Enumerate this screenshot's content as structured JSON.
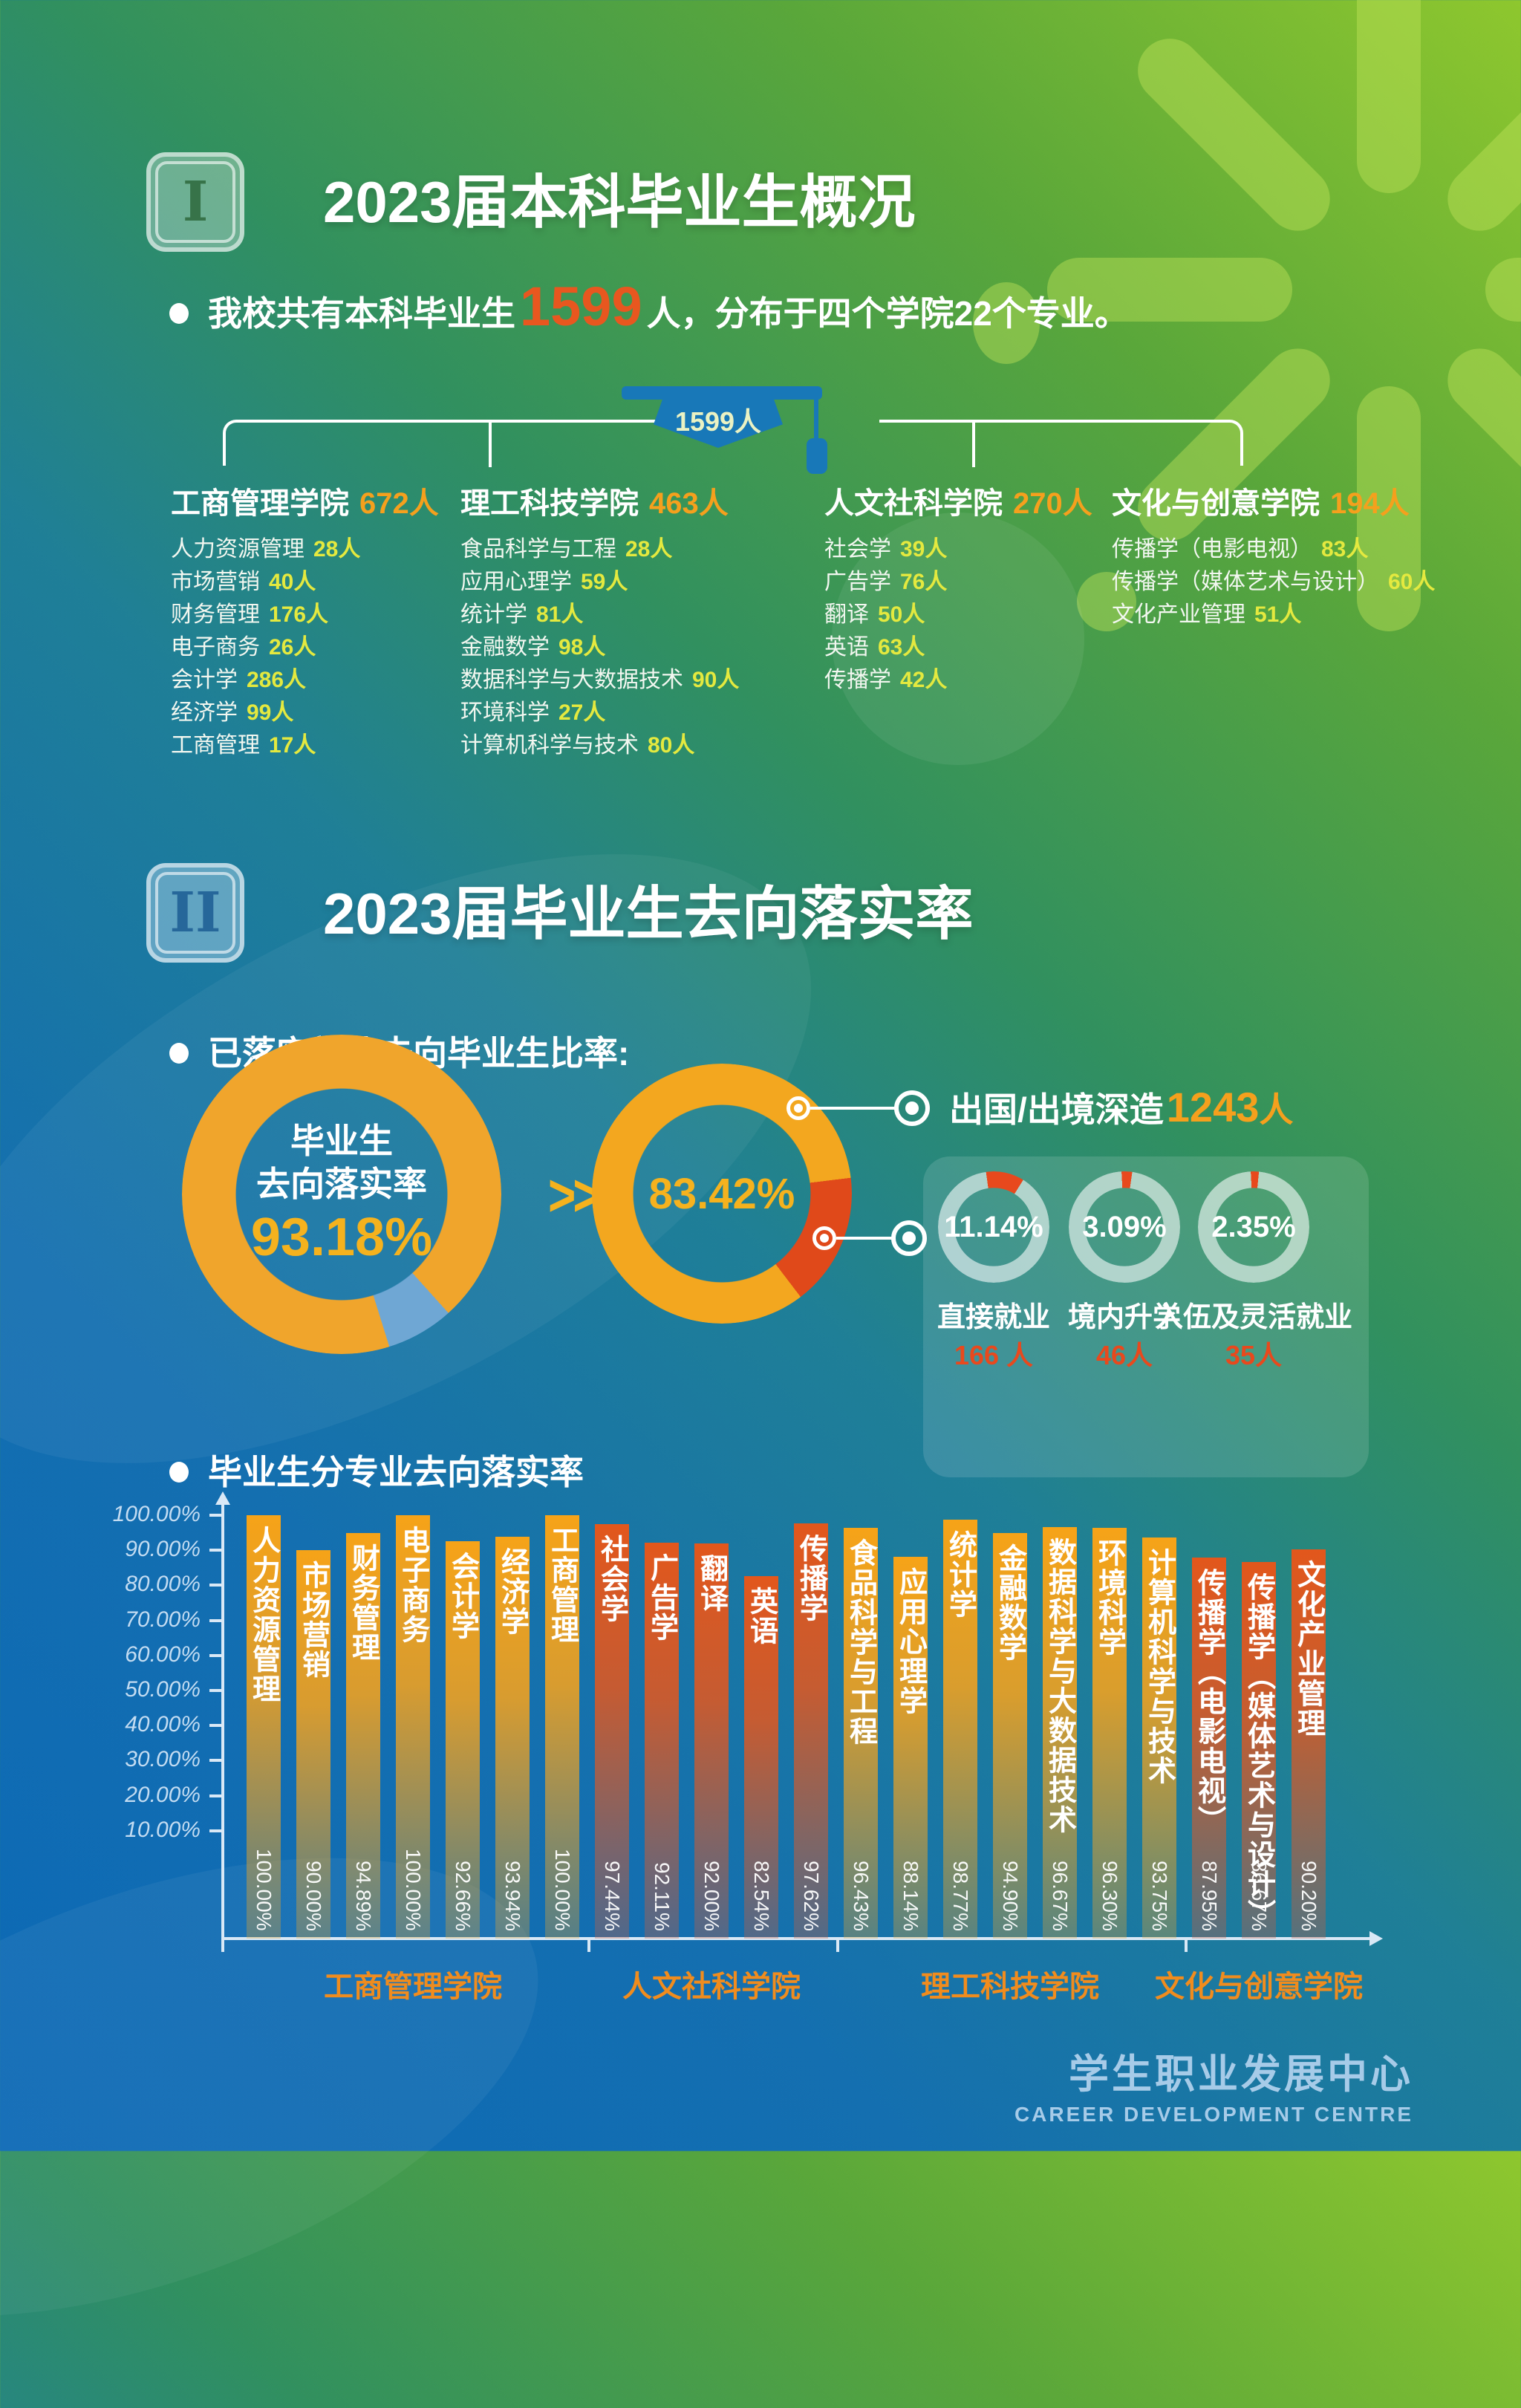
{
  "page": {
    "section1": {
      "badge": "I",
      "title": "2023届本科毕业生概况",
      "intro_prefix": "我校共有本科毕业生",
      "intro_number": "1599",
      "intro_suffix": "人，分布于四个学院22个专业。",
      "cap_label": "1599人",
      "colleges": [
        {
          "name": "工商管理学院",
          "count": "672人",
          "majors": [
            {
              "name": "人力资源管理",
              "count": "28人"
            },
            {
              "name": "市场营销",
              "count": "40人"
            },
            {
              "name": "财务管理",
              "count": "176人"
            },
            {
              "name": "电子商务",
              "count": "26人"
            },
            {
              "name": "会计学",
              "count": "286人"
            },
            {
              "name": "经济学",
              "count": "99人"
            },
            {
              "name": "工商管理",
              "count": "17人"
            }
          ]
        },
        {
          "name": "理工科技学院",
          "count": "463人",
          "majors": [
            {
              "name": "食品科学与工程",
              "count": "28人"
            },
            {
              "name": "应用心理学",
              "count": "59人"
            },
            {
              "name": "统计学",
              "count": "81人"
            },
            {
              "name": "金融数学",
              "count": "98人"
            },
            {
              "name": "数据科学与大数据技术",
              "count": "90人"
            },
            {
              "name": "环境科学",
              "count": "27人"
            },
            {
              "name": "计算机科学与技术",
              "count": "80人"
            }
          ]
        },
        {
          "name": "人文社科学院",
          "count": "270人",
          "majors": [
            {
              "name": "社会学",
              "count": "39人"
            },
            {
              "name": "广告学",
              "count": "76人"
            },
            {
              "name": "翻译",
              "count": "50人"
            },
            {
              "name": "英语",
              "count": "63人"
            },
            {
              "name": "传播学",
              "count": "42人"
            }
          ]
        },
        {
          "name": "文化与创意学院",
          "count": "194人",
          "majors": [
            {
              "name": "传播学（电影电视）",
              "count": "83人"
            },
            {
              "name": "传播学（媒体艺术与设计）",
              "count": "60人"
            },
            {
              "name": "文化产业管理",
              "count": "51人"
            }
          ]
        }
      ]
    },
    "section2": {
      "badge": "II",
      "title": "2023届毕业生去向落实率",
      "bullet1": "已落实就业去向毕业生比率:",
      "donut_main": {
        "label_line1": "毕业生",
        "label_line2": "去向落实率",
        "value": "93.18%"
      },
      "arrows": ">>>",
      "donut_secondary": {
        "value": "83.42%"
      },
      "callout": {
        "prefix": "出国/出境深造",
        "number": "1243",
        "suffix": "人"
      },
      "sub_donuts": [
        {
          "percent_label": "11.14%",
          "percent": 11.14,
          "label": "直接就业",
          "count": "166 人"
        },
        {
          "percent_label": "3.09%",
          "percent": 3.09,
          "label": "境内升学",
          "count": "46人"
        },
        {
          "percent_label": "2.35%",
          "percent": 2.35,
          "label": "入伍及灵活就业",
          "count": "35人"
        }
      ],
      "bullet2": "毕业生分专业去向落实率"
    },
    "footer": {
      "cn": "学生职业发展中心",
      "en": "CAREER DEVELOPMENT CENTRE"
    }
  },
  "colors": {
    "accent_orange": "#f5a01d",
    "number_yellow": "#e4e93f",
    "intro_red": "#e8571f",
    "cap_blue": "#1878b8",
    "donut_yellow": "#f0a52c",
    "donut_gap_blue": "#6fa7d4",
    "donut_red": "#e0491a",
    "sub_donut_red": "#e8491d",
    "group_label_orange": "#f08c1e"
  },
  "chart_data": [
    {
      "type": "pie",
      "title": "已落实就业去向毕业生比率",
      "slices": [
        {
          "label": "毕业生去向落实率",
          "value": 93.18,
          "unit": "%"
        },
        {
          "label": "出国/出境深造",
          "value": 83.42,
          "unit": "%",
          "count": 1243
        },
        {
          "label": "直接就业",
          "value": 11.14,
          "unit": "%",
          "count": 166
        },
        {
          "label": "境内升学",
          "value": 3.09,
          "unit": "%",
          "count": 46
        },
        {
          "label": "入伍及灵活就业",
          "value": 2.35,
          "unit": "%",
          "count": 35
        }
      ]
    },
    {
      "type": "bar",
      "title": "毕业生分专业去向落实率",
      "xlabel": "",
      "ylabel": "",
      "ylim": [
        0,
        100
      ],
      "grid": false,
      "yticks": [
        "100.00%",
        "90.00%",
        "80.00%",
        "70.00%",
        "60.00%",
        "50.00%",
        "40.00%",
        "30.00%",
        "20.00%",
        "10.00%"
      ],
      "categories": [
        "人力资源管理",
        "市场营销",
        "财务管理",
        "电子商务",
        "会计学",
        "经济学",
        "工商管理",
        "社会学",
        "广告学",
        "翻译",
        "英语",
        "传播学",
        "食品科学与工程",
        "应用心理学",
        "统计学",
        "金融数学",
        "数据科学与大数据技术",
        "环境科学",
        "计算机科学与技术",
        "传播学（电影电视）",
        "传播学（媒体艺术与设计）",
        "文化产业管理"
      ],
      "values": [
        100.0,
        90.0,
        94.89,
        100.0,
        92.66,
        93.94,
        100.0,
        97.44,
        92.11,
        92.0,
        82.54,
        97.62,
        96.43,
        88.14,
        98.77,
        94.9,
        96.67,
        96.3,
        93.75,
        87.95,
        86.67,
        90.2
      ],
      "labels": [
        "100.00%",
        "90.00%",
        "94.89%",
        "100.00%",
        "92.66%",
        "93.94%",
        "100.00%",
        "97.44%",
        "92.11%",
        "92.00%",
        "82.54%",
        "97.62%",
        "96.43%",
        "88.14%",
        "98.77%",
        "94.90%",
        "96.67%",
        "96.30%",
        "93.75%",
        "87.95%",
        "86.67%",
        "90.20%"
      ],
      "bar_college": [
        0,
        0,
        0,
        0,
        0,
        0,
        0,
        1,
        1,
        1,
        1,
        1,
        2,
        2,
        2,
        2,
        2,
        2,
        2,
        3,
        3,
        3
      ],
      "groups": [
        {
          "college": "工商管理学院",
          "color": "orange"
        },
        {
          "college": "人文社科学院",
          "color": "red"
        },
        {
          "college": "理工科技学院",
          "color": "orange"
        },
        {
          "college": "文化与创意学院",
          "color": "red"
        }
      ]
    }
  ]
}
